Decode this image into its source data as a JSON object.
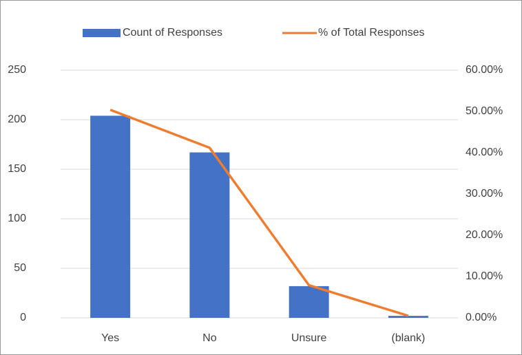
{
  "chart_data": {
    "type": "bar-line",
    "categories": [
      "Yes",
      "No",
      "Unsure",
      "(blank)"
    ],
    "series": [
      {
        "name": "Count of Responses",
        "color": "#4472c4",
        "values": [
          204,
          167,
          32,
          2
        ]
      },
      {
        "name": "% of Total Responses",
        "color": "#ed7d31",
        "axis": "y2",
        "values": [
          50.4,
          41.2,
          7.9,
          0.5
        ]
      }
    ],
    "ylim": [
      0,
      250
    ],
    "yticks": [
      0,
      50,
      100,
      150,
      200,
      250
    ],
    "y2lim": [
      0,
      60
    ],
    "y2ticks": [
      {
        "value": 0,
        "label": "0.00%"
      },
      {
        "value": 10,
        "label": "10.00%"
      },
      {
        "value": 20,
        "label": "20.00%"
      },
      {
        "value": 30,
        "label": "30.00%"
      },
      {
        "value": 40,
        "label": "40.00%"
      },
      {
        "value": 50,
        "label": "50.00%"
      },
      {
        "value": 60,
        "label": "60.00%"
      }
    ],
    "grid": true,
    "legend": "top"
  }
}
